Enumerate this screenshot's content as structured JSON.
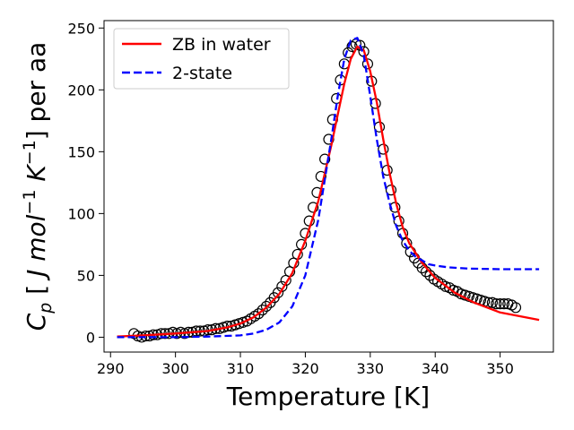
{
  "chart_data": {
    "type": "scatter",
    "xlabel": "Temperature [K]",
    "ylabel": "per aa",
    "ylabel_math": {
      "symbol": "C",
      "subscript": "p",
      "open": " [ ",
      "units": "J mol",
      "exp1": "−1",
      "k": " K",
      "exp2": "−1",
      "close": "] "
    },
    "xlim": [
      289.0,
      358.2
    ],
    "ylim": [
      -12,
      256
    ],
    "xticks": [
      290,
      300,
      310,
      320,
      330,
      340,
      350
    ],
    "yticks": [
      0,
      50,
      100,
      150,
      200,
      250
    ],
    "grid": false,
    "legend_position": "upper-left",
    "series": [
      {
        "name": "ZB in water",
        "kind": "line",
        "style": "solid",
        "color": "#ff0000",
        "x": [
          291,
          295,
          300,
          305,
          308,
          310,
          312,
          314,
          316,
          318,
          320,
          322,
          324,
          325,
          326,
          327,
          328,
          329,
          330,
          331,
          332,
          333,
          334,
          335,
          336,
          338,
          340,
          343,
          346,
          350,
          356
        ],
        "y": [
          0.5,
          1.5,
          3,
          5,
          8,
          11,
          16,
          24,
          35,
          52,
          78,
          110,
          155,
          180,
          205,
          225,
          235,
          232,
          215,
          190,
          160,
          132,
          108,
          89,
          76,
          60,
          48,
          36,
          28,
          20,
          14
        ]
      },
      {
        "name": "2-state",
        "kind": "line",
        "style": "dashed",
        "color": "#0000ff",
        "x": [
          291,
          300,
          305,
          310,
          312,
          314,
          316,
          318,
          320,
          322,
          324,
          325,
          326,
          327,
          328,
          329,
          330,
          331,
          332,
          333,
          334,
          335,
          336,
          337,
          338,
          339,
          340,
          342,
          345,
          350,
          356
        ],
        "y": [
          0,
          0,
          0.5,
          1.5,
          3,
          6,
          12,
          25,
          50,
          95,
          160,
          195,
          225,
          240,
          242,
          228,
          195,
          160,
          130,
          108,
          90,
          78,
          70,
          65,
          62,
          59,
          58,
          56.5,
          55.5,
          55,
          55
        ]
      },
      {
        "name": "",
        "kind": "points",
        "style": "open-circle",
        "color": "#000000",
        "x": [
          293.6,
          294.2,
          294.8,
          295.4,
          296,
          296.6,
          297.2,
          297.8,
          298.4,
          299,
          299.6,
          300.2,
          300.8,
          301.4,
          302,
          302.6,
          303.2,
          303.8,
          304.4,
          305,
          305.6,
          306.2,
          306.8,
          307.4,
          308,
          308.6,
          309.2,
          309.8,
          310.4,
          311,
          311.6,
          312.2,
          312.8,
          313.4,
          314,
          314.6,
          315.2,
          315.8,
          316.4,
          317,
          317.6,
          318.2,
          318.8,
          319.4,
          320,
          320.6,
          321.2,
          321.8,
          322.4,
          323,
          323.6,
          324.2,
          324.8,
          325.4,
          326,
          326.6,
          327.2,
          327.8,
          328.4,
          329,
          329.6,
          330.2,
          330.8,
          331.4,
          332,
          332.6,
          333.2,
          333.8,
          334.4,
          335,
          335.6,
          336.2,
          336.8,
          337.4,
          338,
          338.6,
          339.2,
          339.8,
          340.4,
          341,
          341.6,
          342.2,
          342.8,
          343.4,
          344,
          344.6,
          345.2,
          345.8,
          346.4,
          347,
          347.6,
          348.2,
          348.8,
          349.4,
          350,
          350.6,
          351.2,
          351.8,
          352.4
        ],
        "y": [
          3,
          1,
          0,
          1,
          1,
          2,
          2,
          3,
          3,
          3,
          4,
          3,
          4,
          3,
          4,
          4,
          5,
          5,
          5,
          6,
          6,
          7,
          7,
          8,
          9,
          9,
          10,
          11,
          12,
          13,
          15,
          17,
          19,
          22,
          25,
          28,
          32,
          36,
          41,
          46,
          53,
          60,
          67,
          75,
          84,
          94,
          105,
          117,
          130,
          144,
          160,
          176,
          193,
          208,
          221,
          230,
          235,
          237,
          236,
          231,
          221,
          207,
          189,
          170,
          152,
          135,
          119,
          105,
          94,
          84,
          76,
          69,
          64,
          60,
          56,
          53,
          50,
          47,
          45,
          43,
          41,
          40,
          38,
          37,
          35,
          34,
          33,
          32,
          31,
          30,
          29,
          28,
          28,
          27,
          27,
          27,
          27,
          26,
          24
        ]
      }
    ]
  }
}
